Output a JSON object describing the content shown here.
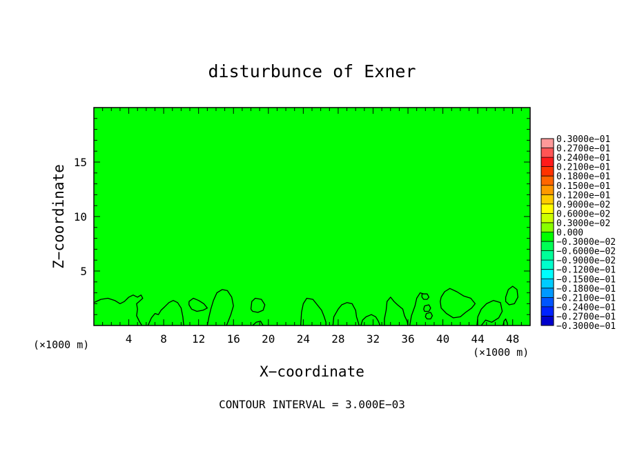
{
  "chart_data": {
    "type": "heatmap",
    "title": "disturbunce of Exner",
    "xlabel": "X−coordinate",
    "ylabel": "Z−coordinate",
    "x_unit_left": "(×1000 m)",
    "x_unit_right": "(×1000 m)",
    "footer": "CONTOUR INTERVAL = 3.000E−03",
    "xlim": [
      0,
      50
    ],
    "ylim": [
      0,
      20
    ],
    "x_ticks": [
      4,
      8,
      12,
      16,
      20,
      24,
      28,
      32,
      36,
      40,
      44,
      48
    ],
    "y_ticks": [
      5,
      10,
      15
    ],
    "field_value": 0.0,
    "field_color": "#00ff00",
    "contour_color": "#000000",
    "legend": {
      "placement": "right",
      "levels": [
        {
          "label": "0.3000e−01",
          "color": "#ff9999"
        },
        {
          "label": "0.2700e−01",
          "color": "#ff5555"
        },
        {
          "label": "0.2400e−01",
          "color": "#ff1a1a"
        },
        {
          "label": "0.2100e−01",
          "color": "#ff3300"
        },
        {
          "label": "0.1800e−01",
          "color": "#ff6600"
        },
        {
          "label": "0.1500e−01",
          "color": "#ff9900"
        },
        {
          "label": "0.1200e−01",
          "color": "#ffcc00"
        },
        {
          "label": "0.9000e−02",
          "color": "#ffff00"
        },
        {
          "label": "0.6000e−02",
          "color": "#ccff00"
        },
        {
          "label": "0.3000e−02",
          "color": "#88ff00"
        },
        {
          "label": "0.000",
          "color": "#00ff00"
        },
        {
          "label": "−0.3000e−02",
          "color": "#00ff55"
        },
        {
          "label": "−0.6000e−02",
          "color": "#00ff99"
        },
        {
          "label": "−0.9000e−02",
          "color": "#00ffcc"
        },
        {
          "label": "−0.1200e−01",
          "color": "#00ffff"
        },
        {
          "label": "−0.1500e−01",
          "color": "#00ccff"
        },
        {
          "label": "−0.1800e−01",
          "color": "#0099ff"
        },
        {
          "label": "−0.2100e−01",
          "color": "#0055ff"
        },
        {
          "label": "−0.2400e−01",
          "color": "#0022ff"
        },
        {
          "label": "−0.2700e−01",
          "color": "#0000cc"
        },
        {
          "label": "−0.3000e−01",
          "color": "#6600aa"
        }
      ]
    },
    "contours": [
      {
        "points": [
          [
            0.0,
            2.1
          ],
          [
            0.8,
            2.4
          ],
          [
            1.6,
            2.5
          ],
          [
            2.4,
            2.3
          ],
          [
            3.0,
            2.0
          ],
          [
            3.5,
            2.2
          ],
          [
            4.0,
            2.6
          ],
          [
            4.5,
            2.8
          ],
          [
            5.0,
            2.6
          ],
          [
            5.4,
            2.8
          ],
          [
            5.6,
            2.5
          ],
          [
            5.2,
            2.2
          ],
          [
            4.9,
            2.0
          ],
          [
            5.0,
            1.5
          ],
          [
            4.9,
            0.9
          ],
          [
            5.2,
            0.4
          ],
          [
            5.5,
            0.0
          ]
        ]
      },
      {
        "points": [
          [
            6.2,
            0.0
          ],
          [
            6.6,
            0.7
          ],
          [
            7.0,
            1.1
          ],
          [
            7.4,
            1.0
          ],
          [
            7.7,
            1.4
          ],
          [
            8.1,
            1.7
          ],
          [
            8.6,
            2.1
          ],
          [
            9.1,
            2.3
          ],
          [
            9.6,
            2.1
          ],
          [
            10.0,
            1.6
          ],
          [
            10.2,
            0.8
          ],
          [
            10.3,
            0.0
          ]
        ]
      },
      {
        "points": [
          [
            10.9,
            2.2
          ],
          [
            11.4,
            2.5
          ],
          [
            12.0,
            2.3
          ],
          [
            12.6,
            2.0
          ],
          [
            13.0,
            1.6
          ],
          [
            12.5,
            1.4
          ],
          [
            11.8,
            1.3
          ],
          [
            11.2,
            1.5
          ],
          [
            10.9,
            1.9
          ],
          [
            10.9,
            2.2
          ]
        ]
      },
      {
        "points": [
          [
            13.0,
            0.0
          ],
          [
            13.2,
            0.8
          ],
          [
            13.4,
            1.5
          ],
          [
            13.7,
            2.3
          ],
          [
            14.1,
            3.0
          ],
          [
            14.7,
            3.3
          ],
          [
            15.3,
            3.2
          ],
          [
            15.8,
            2.6
          ],
          [
            16.0,
            1.8
          ],
          [
            15.7,
            1.0
          ],
          [
            15.4,
            0.4
          ],
          [
            15.2,
            0.0
          ]
        ]
      },
      {
        "points": [
          [
            18.0,
            1.5
          ],
          [
            18.1,
            2.2
          ],
          [
            18.5,
            2.5
          ],
          [
            19.2,
            2.4
          ],
          [
            19.6,
            1.9
          ],
          [
            19.4,
            1.4
          ],
          [
            18.8,
            1.2
          ],
          [
            18.2,
            1.3
          ],
          [
            18.0,
            1.5
          ]
        ]
      },
      {
        "points": [
          [
            18.2,
            0.0
          ],
          [
            18.6,
            0.3
          ],
          [
            19.1,
            0.4
          ],
          [
            19.4,
            0.0
          ]
        ]
      },
      {
        "points": [
          [
            23.7,
            0.0
          ],
          [
            23.8,
            1.2
          ],
          [
            24.0,
            2.0
          ],
          [
            24.4,
            2.5
          ],
          [
            25.1,
            2.4
          ],
          [
            25.6,
            1.9
          ],
          [
            26.1,
            1.4
          ],
          [
            26.4,
            0.8
          ],
          [
            26.6,
            0.3
          ],
          [
            26.6,
            0.0
          ]
        ]
      },
      {
        "points": [
          [
            27.4,
            0.0
          ],
          [
            27.5,
            0.8
          ],
          [
            28.0,
            1.5
          ],
          [
            28.4,
            1.9
          ],
          [
            29.0,
            2.1
          ],
          [
            29.6,
            2.0
          ],
          [
            30.0,
            1.4
          ],
          [
            30.1,
            0.8
          ],
          [
            30.3,
            0.3
          ],
          [
            30.4,
            0.0
          ]
        ]
      },
      {
        "points": [
          [
            30.6,
            0.0
          ],
          [
            30.8,
            0.5
          ],
          [
            31.2,
            0.8
          ],
          [
            31.8,
            1.0
          ],
          [
            32.3,
            0.8
          ],
          [
            32.6,
            0.4
          ],
          [
            32.8,
            0.0
          ]
        ]
      },
      {
        "points": [
          [
            33.3,
            0.0
          ],
          [
            33.3,
            0.6
          ],
          [
            33.5,
            1.4
          ],
          [
            33.6,
            2.2
          ],
          [
            34.0,
            2.6
          ],
          [
            34.4,
            2.2
          ],
          [
            34.8,
            1.9
          ],
          [
            35.4,
            1.5
          ],
          [
            35.6,
            0.9
          ],
          [
            35.9,
            0.4
          ],
          [
            36.0,
            0.0
          ]
        ]
      },
      {
        "points": [
          [
            36.2,
            0.0
          ],
          [
            36.4,
            0.9
          ],
          [
            36.8,
            1.8
          ],
          [
            37.0,
            2.5
          ],
          [
            37.4,
            3.0
          ],
          [
            37.8,
            2.9
          ]
        ]
      },
      {
        "points": [
          [
            37.6,
            2.9
          ],
          [
            38.2,
            2.9
          ],
          [
            38.4,
            2.6
          ],
          [
            38.2,
            2.4
          ],
          [
            37.8,
            2.4
          ],
          [
            37.6,
            2.6
          ],
          [
            37.6,
            2.9
          ]
        ]
      },
      {
        "points": [
          [
            37.9,
            1.8
          ],
          [
            38.4,
            1.9
          ],
          [
            38.6,
            1.6
          ],
          [
            38.4,
            1.3
          ],
          [
            37.9,
            1.3
          ],
          [
            37.8,
            1.5
          ],
          [
            37.9,
            1.8
          ]
        ]
      },
      {
        "points": [
          [
            38.1,
            1.1
          ],
          [
            38.6,
            1.2
          ],
          [
            38.8,
            0.9
          ],
          [
            38.6,
            0.6
          ],
          [
            38.2,
            0.6
          ],
          [
            38.0,
            0.8
          ],
          [
            38.1,
            1.1
          ]
        ]
      },
      {
        "points": [
          [
            39.8,
            2.6
          ],
          [
            40.2,
            3.1
          ],
          [
            40.8,
            3.4
          ],
          [
            41.6,
            3.1
          ],
          [
            42.4,
            2.7
          ],
          [
            43.2,
            2.5
          ],
          [
            43.7,
            2.0
          ],
          [
            43.3,
            1.6
          ],
          [
            42.6,
            1.2
          ],
          [
            42.0,
            0.8
          ],
          [
            41.2,
            0.7
          ],
          [
            40.4,
            1.1
          ],
          [
            39.8,
            1.6
          ],
          [
            39.7,
            2.2
          ],
          [
            39.8,
            2.6
          ]
        ]
      },
      {
        "points": [
          [
            43.9,
            0.0
          ],
          [
            44.0,
            0.8
          ],
          [
            44.4,
            1.5
          ],
          [
            45.0,
            2.0
          ],
          [
            45.8,
            2.3
          ],
          [
            46.6,
            2.1
          ],
          [
            46.8,
            1.3
          ],
          [
            46.4,
            0.7
          ],
          [
            45.6,
            0.3
          ],
          [
            44.9,
            0.5
          ],
          [
            44.4,
            0.0
          ]
        ]
      },
      {
        "points": [
          [
            47.2,
            2.6
          ],
          [
            47.5,
            3.3
          ],
          [
            48.0,
            3.6
          ],
          [
            48.5,
            3.3
          ],
          [
            48.6,
            2.6
          ],
          [
            48.2,
            2.0
          ],
          [
            47.6,
            1.9
          ],
          [
            47.2,
            2.2
          ],
          [
            47.2,
            2.6
          ]
        ]
      },
      {
        "points": [
          [
            46.9,
            0.0
          ],
          [
            47.0,
            0.4
          ],
          [
            47.2,
            0.6
          ],
          [
            47.4,
            0.2
          ],
          [
            47.4,
            0.0
          ]
        ]
      }
    ]
  }
}
